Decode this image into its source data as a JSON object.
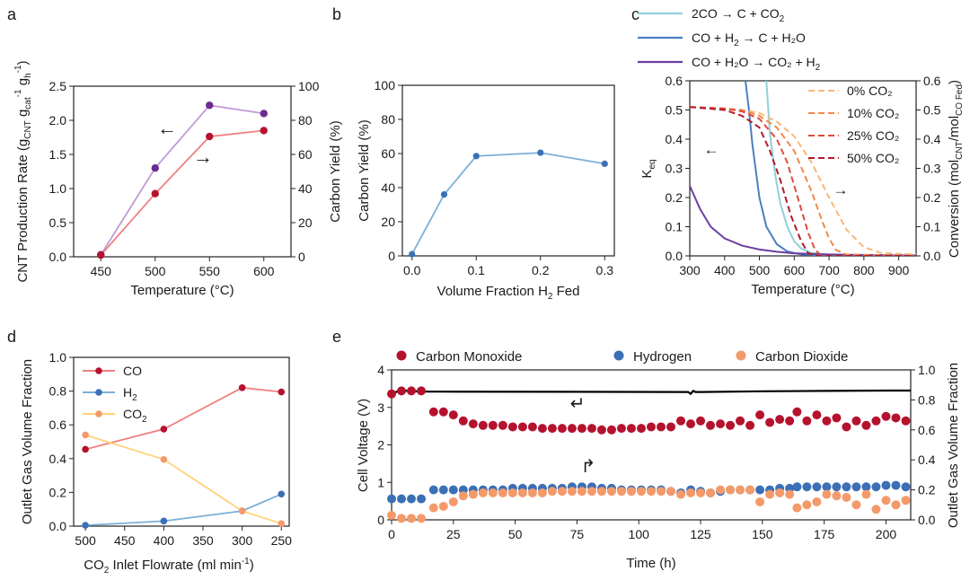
{
  "colors": {
    "red": "#b5122e",
    "pink": "#f08080",
    "lilac": "#c19bd6",
    "purple": "#6a2c8f",
    "blue": "#3b6fb6",
    "lightblue": "#7ab0d8",
    "orange": "#f49a6a",
    "yellow": "#ffd27a",
    "cyan": "#8fd0db",
    "midblue": "#4a7fc1",
    "violet": "#6b3fa0",
    "dash0": "#f7b97a",
    "dash10": "#f08a4a",
    "dash25": "#e04a3a",
    "dash50": "#b01a2a"
  },
  "chart_data": [
    {
      "panel": "a",
      "type": "line",
      "x": [
        450,
        500,
        550,
        600
      ],
      "xlabel": "Temperature (°C)",
      "xticks": [
        "450",
        "500",
        "550",
        "600"
      ],
      "ylabel_left": "CNT Production Rate (g_CNT g_cat^-1 g_h^-1)",
      "ylim_left": [
        0,
        2.5
      ],
      "yticks_left": [
        "0.0",
        "0.5",
        "1.0",
        "1.5",
        "2.0",
        "2.5"
      ],
      "ylabel_right": "Carbon Yield (%)",
      "ylim_right": [
        0,
        100
      ],
      "yticks_right": [
        "0",
        "20",
        "40",
        "60",
        "80",
        "100"
      ],
      "series": [
        {
          "name": "CNT Production Rate",
          "axis": "left",
          "values": [
            0.03,
            1.3,
            2.22,
            2.1
          ]
        },
        {
          "name": "Carbon Yield",
          "axis": "right",
          "values": [
            1,
            37,
            70.5,
            74
          ]
        }
      ],
      "annotations": [
        "←",
        "→"
      ]
    },
    {
      "panel": "b",
      "type": "line",
      "x": [
        0.0,
        0.05,
        0.1,
        0.2,
        0.3
      ],
      "values": [
        1,
        36,
        58.5,
        60.5,
        54
      ],
      "xlabel": "Volume Fraction H₂ Fed",
      "xticks": [
        "0.0",
        "0.1",
        "0.2",
        "0.3"
      ],
      "ylabel": "Carbon Yield (%)",
      "ylim": [
        0,
        100
      ],
      "yticks": [
        "0",
        "20",
        "40",
        "60",
        "80",
        "100"
      ]
    },
    {
      "panel": "c",
      "type": "line",
      "xlabel": "Temperature (°C)",
      "xlim": [
        300,
        950
      ],
      "xticks": [
        "300",
        "400",
        "500",
        "600",
        "700",
        "800",
        "900"
      ],
      "ylabel_left": "K_eq",
      "ylim_left": [
        0,
        0.6
      ],
      "yticks_left": [
        "0.0",
        "0.1",
        "0.2",
        "0.3",
        "0.4",
        "0.5",
        "0.6"
      ],
      "ylabel_right": "Conversion (mol_CNT/mol_CO Fed)",
      "ylim_right": [
        0,
        0.6
      ],
      "yticks_right": [
        "0.0",
        "0.1",
        "0.2",
        "0.3",
        "0.4",
        "0.5",
        "0.6"
      ],
      "legend_top": [
        {
          "pre": "2CO → C + CO",
          "sub": "2",
          "post": ""
        },
        {
          "pre": "CO + H",
          "sub": "2",
          "post": " → C + H₂O"
        },
        {
          "pre": "CO + H₂O → CO₂ + H",
          "sub": "2",
          "post": ""
        }
      ],
      "legend_inner": [
        "0% CO₂",
        "10% CO₂",
        "25% CO₂",
        "50% CO₂"
      ],
      "keq_series": [
        {
          "name": "2CO → C + CO2",
          "x": [
            520,
            530,
            545,
            560,
            580,
            600,
            620,
            650,
            700,
            800,
            950
          ],
          "y": [
            0.6,
            0.42,
            0.28,
            0.18,
            0.1,
            0.05,
            0.025,
            0.01,
            0.003,
            0.001,
            0.0
          ]
        },
        {
          "name": "CO + H2 → C + H2O",
          "x": [
            460,
            470,
            480,
            500,
            520,
            550,
            580,
            620,
            700,
            950
          ],
          "y": [
            0.6,
            0.5,
            0.38,
            0.2,
            0.1,
            0.04,
            0.015,
            0.005,
            0.001,
            0.0
          ]
        },
        {
          "name": "CO + H2O → CO2 + H2",
          "x": [
            300,
            330,
            360,
            400,
            450,
            500,
            550,
            600,
            700,
            800,
            950
          ],
          "y": [
            0.24,
            0.16,
            0.1,
            0.06,
            0.035,
            0.022,
            0.014,
            0.009,
            0.005,
            0.003,
            0.002
          ]
        }
      ],
      "conversion_series": [
        {
          "name": "0% CO2",
          "x": [
            300,
            400,
            450,
            500,
            550,
            600,
            650,
            700,
            750,
            800,
            850,
            950
          ],
          "y": [
            0.51,
            0.505,
            0.5,
            0.49,
            0.46,
            0.41,
            0.32,
            0.2,
            0.09,
            0.03,
            0.01,
            0.005
          ]
        },
        {
          "name": "10% CO2",
          "x": [
            300,
            400,
            450,
            500,
            550,
            600,
            650,
            680,
            700,
            720,
            750,
            950
          ],
          "y": [
            0.51,
            0.505,
            0.5,
            0.48,
            0.44,
            0.36,
            0.22,
            0.12,
            0.06,
            0.02,
            0.005,
            0.0
          ]
        },
        {
          "name": "25% CO2",
          "x": [
            300,
            400,
            450,
            500,
            550,
            580,
            610,
            640,
            660,
            680,
            950
          ],
          "y": [
            0.51,
            0.505,
            0.495,
            0.47,
            0.4,
            0.32,
            0.2,
            0.08,
            0.02,
            0.0,
            0.0
          ]
        },
        {
          "name": "50% CO2",
          "x": [
            300,
            400,
            450,
            500,
            530,
            560,
            590,
            620,
            640,
            660,
            950
          ],
          "y": [
            0.51,
            0.5,
            0.48,
            0.44,
            0.36,
            0.26,
            0.14,
            0.05,
            0.01,
            0.0,
            0.0
          ]
        }
      ],
      "annotations": [
        "←",
        "→"
      ]
    },
    {
      "panel": "d",
      "type": "line",
      "categories": [
        "500",
        "450",
        "400",
        "350",
        "300",
        "250"
      ],
      "x": [
        500,
        400,
        300,
        250
      ],
      "xlabel": "CO₂ Inlet Flowrate (ml min⁻¹)",
      "ylabel": "Outlet Gas Volume Fraction",
      "ylim": [
        0,
        1.0
      ],
      "yticks": [
        "0.0",
        "0.2",
        "0.4",
        "0.6",
        "0.8",
        "1.0"
      ],
      "series": [
        {
          "name": "CO",
          "label_main": "CO",
          "label_sub": "",
          "values": [
            0.455,
            0.575,
            0.82,
            0.795
          ]
        },
        {
          "name": "H2",
          "label_main": "H",
          "label_sub": "2",
          "values": [
            0.005,
            0.03,
            0.09,
            0.19
          ]
        },
        {
          "name": "CO2",
          "label_main": "CO",
          "label_sub": "2",
          "values": [
            0.54,
            0.395,
            0.09,
            0.015
          ]
        }
      ]
    },
    {
      "panel": "e",
      "type": "scatter",
      "xlabel": "Time (h)",
      "xlim": [
        0,
        210
      ],
      "xticks": [
        "0",
        "25",
        "50",
        "75",
        "100",
        "125",
        "150",
        "175",
        "200"
      ],
      "ylabel_left": "Cell Voltage (V)",
      "ylim_left": [
        0,
        4
      ],
      "yticks_left": [
        "0",
        "1",
        "2",
        "3",
        "4"
      ],
      "ylabel_right": "Outlet Gas Volume Fraction",
      "ylim_right": [
        0,
        1.0
      ],
      "yticks_right": [
        "0.0",
        "0.2",
        "0.4",
        "0.6",
        "0.8",
        "1.0"
      ],
      "legend": [
        "Carbon Monoxide",
        "Hydrogen",
        "Carbon Dioxide"
      ],
      "voltage": {
        "x": [
          0,
          3,
          10,
          15,
          20,
          120,
          121,
          122,
          123,
          125,
          150,
          175,
          200,
          210
        ],
        "y": [
          3.35,
          3.45,
          3.43,
          3.42,
          3.42,
          3.41,
          3.36,
          3.44,
          3.41,
          3.41,
          3.43,
          3.44,
          3.45,
          3.45
        ]
      },
      "co": {
        "x": [
          0,
          4,
          8,
          12,
          17,
          21,
          25,
          29,
          33,
          37,
          41,
          45,
          49,
          53,
          57,
          61,
          65,
          69,
          73,
          77,
          81,
          85,
          89,
          93,
          97,
          101,
          105,
          109,
          113,
          117,
          121,
          125,
          129,
          133,
          137,
          141,
          145,
          149,
          153,
          157,
          161,
          164,
          168,
          172,
          176,
          180,
          184,
          188,
          192,
          196,
          200,
          204,
          208
        ],
        "y": [
          0.84,
          0.86,
          0.86,
          0.86,
          0.72,
          0.72,
          0.7,
          0.66,
          0.64,
          0.63,
          0.63,
          0.63,
          0.62,
          0.62,
          0.62,
          0.61,
          0.61,
          0.61,
          0.61,
          0.61,
          0.61,
          0.6,
          0.6,
          0.61,
          0.61,
          0.61,
          0.62,
          0.62,
          0.62,
          0.66,
          0.64,
          0.66,
          0.63,
          0.64,
          0.63,
          0.66,
          0.63,
          0.7,
          0.65,
          0.67,
          0.66,
          0.72,
          0.66,
          0.7,
          0.66,
          0.68,
          0.62,
          0.66,
          0.63,
          0.66,
          0.69,
          0.68,
          0.66
        ]
      },
      "h2": {
        "x": [
          0,
          4,
          8,
          12,
          17,
          21,
          25,
          29,
          33,
          37,
          41,
          45,
          49,
          53,
          57,
          61,
          65,
          69,
          73,
          77,
          81,
          85,
          89,
          93,
          97,
          101,
          105,
          109,
          113,
          117,
          121,
          125,
          129,
          133,
          137,
          141,
          145,
          149,
          153,
          157,
          161,
          164,
          168,
          172,
          176,
          180,
          184,
          188,
          192,
          196,
          200,
          204,
          208
        ],
        "y": [
          0.14,
          0.14,
          0.14,
          0.14,
          0.2,
          0.2,
          0.2,
          0.2,
          0.2,
          0.2,
          0.2,
          0.2,
          0.21,
          0.21,
          0.21,
          0.21,
          0.21,
          0.21,
          0.22,
          0.22,
          0.22,
          0.21,
          0.21,
          0.2,
          0.2,
          0.2,
          0.2,
          0.2,
          0.19,
          0.18,
          0.2,
          0.19,
          0.18,
          0.19,
          0.2,
          0.2,
          0.2,
          0.2,
          0.2,
          0.21,
          0.21,
          0.22,
          0.22,
          0.22,
          0.22,
          0.22,
          0.22,
          0.22,
          0.22,
          0.22,
          0.23,
          0.23,
          0.22
        ]
      },
      "co2": {
        "x": [
          0,
          4,
          8,
          12,
          17,
          21,
          25,
          29,
          33,
          37,
          41,
          45,
          49,
          53,
          57,
          61,
          65,
          69,
          73,
          77,
          81,
          85,
          89,
          93,
          97,
          101,
          105,
          109,
          113,
          117,
          121,
          125,
          129,
          133,
          137,
          141,
          145,
          149,
          153,
          157,
          161,
          164,
          168,
          172,
          176,
          180,
          184,
          188,
          192,
          196,
          200,
          204,
          208
        ],
        "y": [
          0.03,
          0.01,
          0.01,
          0.01,
          0.08,
          0.09,
          0.12,
          0.16,
          0.17,
          0.18,
          0.18,
          0.18,
          0.18,
          0.18,
          0.18,
          0.18,
          0.19,
          0.19,
          0.19,
          0.19,
          0.19,
          0.19,
          0.19,
          0.19,
          0.19,
          0.19,
          0.19,
          0.19,
          0.19,
          0.17,
          0.18,
          0.18,
          0.18,
          0.2,
          0.2,
          0.2,
          0.2,
          0.12,
          0.17,
          0.18,
          0.17,
          0.08,
          0.1,
          0.12,
          0.17,
          0.16,
          0.15,
          0.1,
          0.17,
          0.07,
          0.13,
          0.1,
          0.13
        ]
      },
      "annotations": [
        "↵",
        "↱"
      ]
    }
  ]
}
